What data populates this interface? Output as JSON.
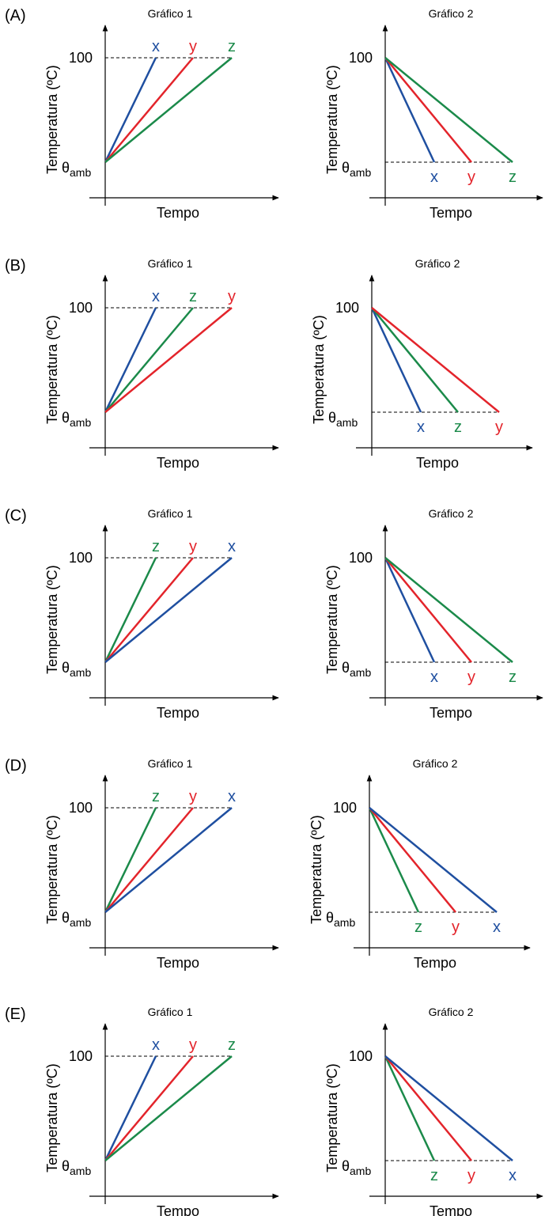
{
  "colors": {
    "x": "#1f4fa0",
    "y": "#e3242b",
    "z": "#1b8a4a",
    "axis": "#000000"
  },
  "chart_data": [
    {
      "option": "(A)",
      "charts": [
        {
          "type": "line",
          "title": "Gráfico 1",
          "xlabel": "Tempo",
          "ylabel": "Temperatura (ºC)",
          "ytick_top": "100",
          "ytick_bottom": "θ",
          "ytick_bottom_sub": "amb",
          "direction": "heating",
          "series_order": [
            "x",
            "y",
            "z"
          ]
        },
        {
          "type": "line",
          "title": "Gráfico 2",
          "xlabel": "Tempo",
          "ylabel": "Temperatura (ºC)",
          "ytick_top": "100",
          "ytick_bottom": "θ",
          "ytick_bottom_sub": "amb",
          "direction": "cooling",
          "series_order": [
            "x",
            "y",
            "z"
          ]
        }
      ]
    },
    {
      "option": "(B)",
      "charts": [
        {
          "type": "line",
          "title": "Gráfico 1",
          "xlabel": "Tempo",
          "ylabel": "Temperatura (ºC)",
          "ytick_top": "100",
          "ytick_bottom": "θ",
          "ytick_bottom_sub": "amb",
          "direction": "heating",
          "series_order": [
            "x",
            "z",
            "y"
          ]
        },
        {
          "type": "line",
          "title": "Gráfico 2",
          "xlabel": "Tempo",
          "ylabel": "Temperatura (ºC)",
          "ytick_top": "100",
          "ytick_bottom": "θ",
          "ytick_bottom_sub": "amb",
          "direction": "cooling",
          "series_order": [
            "x",
            "z",
            "y"
          ]
        }
      ]
    },
    {
      "option": "(C)",
      "charts": [
        {
          "type": "line",
          "title": "Gráfico 1",
          "xlabel": "Tempo",
          "ylabel": "Temperatura (ºC)",
          "ytick_top": "100",
          "ytick_bottom": "θ",
          "ytick_bottom_sub": "amb",
          "direction": "heating",
          "series_order": [
            "z",
            "y",
            "x"
          ]
        },
        {
          "type": "line",
          "title": "Gráfico 2",
          "xlabel": "Tempo",
          "ylabel": "Temperatura (ºC)",
          "ytick_top": "100",
          "ytick_bottom": "θ",
          "ytick_bottom_sub": "amb",
          "direction": "cooling",
          "series_order": [
            "x",
            "y",
            "z"
          ]
        }
      ]
    },
    {
      "option": "(D)",
      "charts": [
        {
          "type": "line",
          "title": "Gráfico 1",
          "xlabel": "Tempo",
          "ylabel": "Temperatura (ºC)",
          "ytick_top": "100",
          "ytick_bottom": "θ",
          "ytick_bottom_sub": "amb",
          "direction": "heating",
          "series_order": [
            "z",
            "y",
            "x"
          ]
        },
        {
          "type": "line",
          "title": "Gráfico 2",
          "xlabel": "Tempo",
          "ylabel": "Temperatura (ºC)",
          "ytick_top": "100",
          "ytick_bottom": "θ",
          "ytick_bottom_sub": "amb",
          "direction": "cooling",
          "series_order": [
            "z",
            "y",
            "x"
          ]
        }
      ]
    },
    {
      "option": "(E)",
      "charts": [
        {
          "type": "line",
          "title": "Gráfico 1",
          "xlabel": "Tempo",
          "ylabel": "Temperatura (ºC)",
          "ytick_top": "100",
          "ytick_bottom": "θ",
          "ytick_bottom_sub": "amb",
          "direction": "heating",
          "series_order": [
            "x",
            "y",
            "z"
          ]
        },
        {
          "type": "line",
          "title": "Gráfico 2",
          "xlabel": "Tempo",
          "ylabel": "Temperatura (ºC)",
          "ytick_top": "100",
          "ytick_bottom": "θ",
          "ytick_bottom_sub": "amb",
          "direction": "cooling",
          "series_order": [
            "z",
            "y",
            "x"
          ]
        }
      ]
    }
  ]
}
